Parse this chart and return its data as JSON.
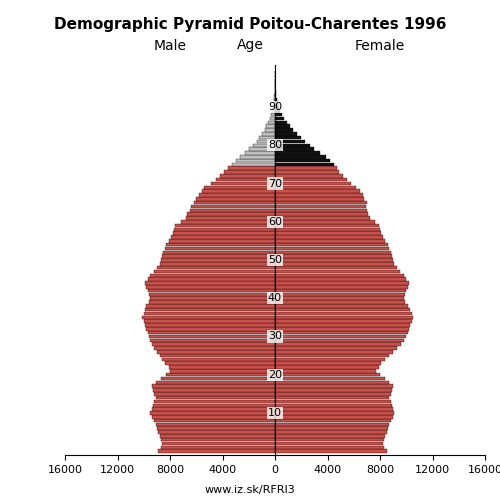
{
  "title": "Demographic Pyramid Poitou-Charentes 1996",
  "label_male": "Male",
  "label_female": "Female",
  "label_age": "Age",
  "url": "www.iz.sk/RFRI3",
  "xlim": 16000,
  "yticks": [
    10,
    20,
    30,
    40,
    50,
    60,
    70,
    80,
    90
  ],
  "color_red": "#c8504a",
  "color_grey": "#c0c0c0",
  "color_black": "#111111",
  "color_threshold": 75,
  "ages": [
    0,
    1,
    2,
    3,
    4,
    5,
    6,
    7,
    8,
    9,
    10,
    11,
    12,
    13,
    14,
    15,
    16,
    17,
    18,
    19,
    20,
    21,
    22,
    23,
    24,
    25,
    26,
    27,
    28,
    29,
    30,
    31,
    32,
    33,
    34,
    35,
    36,
    37,
    38,
    39,
    40,
    41,
    42,
    43,
    44,
    45,
    46,
    47,
    48,
    49,
    50,
    51,
    52,
    53,
    54,
    55,
    56,
    57,
    58,
    59,
    60,
    61,
    62,
    63,
    64,
    65,
    66,
    67,
    68,
    69,
    70,
    71,
    72,
    73,
    74,
    75,
    76,
    77,
    78,
    79,
    80,
    81,
    82,
    83,
    84,
    85,
    86,
    87,
    88,
    89,
    90,
    91,
    92,
    93,
    94,
    95,
    96,
    97,
    98,
    99
  ],
  "male": [
    8900,
    8700,
    8600,
    8700,
    8800,
    8900,
    9000,
    9100,
    9200,
    9400,
    9500,
    9400,
    9300,
    9200,
    9100,
    9200,
    9300,
    9400,
    9100,
    8700,
    8300,
    8000,
    8100,
    8400,
    8600,
    8800,
    9000,
    9200,
    9400,
    9500,
    9600,
    9700,
    9800,
    9900,
    10000,
    10100,
    10000,
    9900,
    9800,
    9600,
    9500,
    9600,
    9700,
    9800,
    9900,
    9700,
    9500,
    9200,
    9000,
    8800,
    8700,
    8600,
    8500,
    8400,
    8300,
    8100,
    7900,
    7800,
    7700,
    7600,
    7200,
    6800,
    6700,
    6500,
    6400,
    6200,
    6000,
    5800,
    5600,
    5400,
    4900,
    4500,
    4200,
    3900,
    3600,
    3300,
    3000,
    2700,
    2300,
    2000,
    1700,
    1400,
    1200,
    1000,
    800,
    650,
    500,
    380,
    280,
    200,
    140,
    95,
    65,
    40,
    25,
    15,
    8,
    4,
    2,
    1
  ],
  "female": [
    8500,
    8300,
    8200,
    8300,
    8400,
    8500,
    8600,
    8700,
    8800,
    9000,
    9100,
    9000,
    8900,
    8800,
    8700,
    8800,
    8900,
    9000,
    8700,
    8400,
    8000,
    7700,
    7900,
    8100,
    8400,
    8700,
    9000,
    9300,
    9600,
    9800,
    10000,
    10100,
    10200,
    10300,
    10400,
    10500,
    10400,
    10300,
    10100,
    9900,
    9800,
    9900,
    10000,
    10100,
    10200,
    10000,
    9800,
    9500,
    9300,
    9100,
    9000,
    8900,
    8800,
    8700,
    8600,
    8400,
    8200,
    8100,
    8000,
    7900,
    7600,
    7200,
    7100,
    7000,
    6900,
    7000,
    6800,
    6700,
    6500,
    6200,
    5800,
    5500,
    5200,
    4900,
    4700,
    4500,
    4200,
    3900,
    3400,
    3000,
    2700,
    2300,
    2000,
    1700,
    1400,
    1150,
    900,
    700,
    530,
    390,
    280,
    195,
    135,
    90,
    58,
    35,
    20,
    10,
    5,
    2
  ]
}
